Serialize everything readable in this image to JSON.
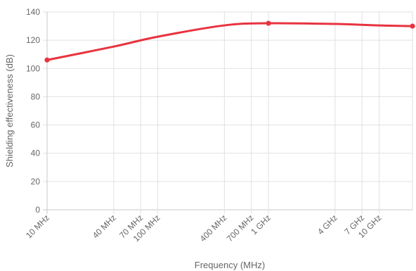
{
  "chart_data": {
    "type": "line",
    "title": "",
    "xlabel": "Frequency (MHz)",
    "ylabel": "Shielding effectiveness (dB)",
    "x_scale": "log",
    "y_scale": "linear",
    "xlim": [
      10,
      20000
    ],
    "ylim": [
      0,
      140
    ],
    "x_ticks": [
      {
        "value": 10,
        "label": "10 MHz"
      },
      {
        "value": 40,
        "label": "40 MHz"
      },
      {
        "value": 70,
        "label": "70 MHz"
      },
      {
        "value": 100,
        "label": "100 MHz"
      },
      {
        "value": 400,
        "label": "400 MHz"
      },
      {
        "value": 700,
        "label": "700 MHz"
      },
      {
        "value": 1000,
        "label": "1 GHz"
      },
      {
        "value": 4000,
        "label": "4 GHz"
      },
      {
        "value": 7000,
        "label": "7 GHz"
      },
      {
        "value": 10000,
        "label": "10 GHz"
      }
    ],
    "y_ticks": [
      0,
      20,
      40,
      60,
      80,
      100,
      120,
      140
    ],
    "grid": true,
    "legend": "none",
    "series": [
      {
        "color": "#e8333f",
        "x": [
          10,
          1000,
          20000
        ],
        "y": [
          106,
          132,
          130
        ],
        "curve_x": [
          10,
          40,
          100,
          400,
          1000,
          4000,
          10000,
          20000
        ],
        "curve_y": [
          106,
          115.5,
          122.5,
          130.5,
          132,
          131.5,
          130.5,
          130
        ]
      }
    ]
  }
}
